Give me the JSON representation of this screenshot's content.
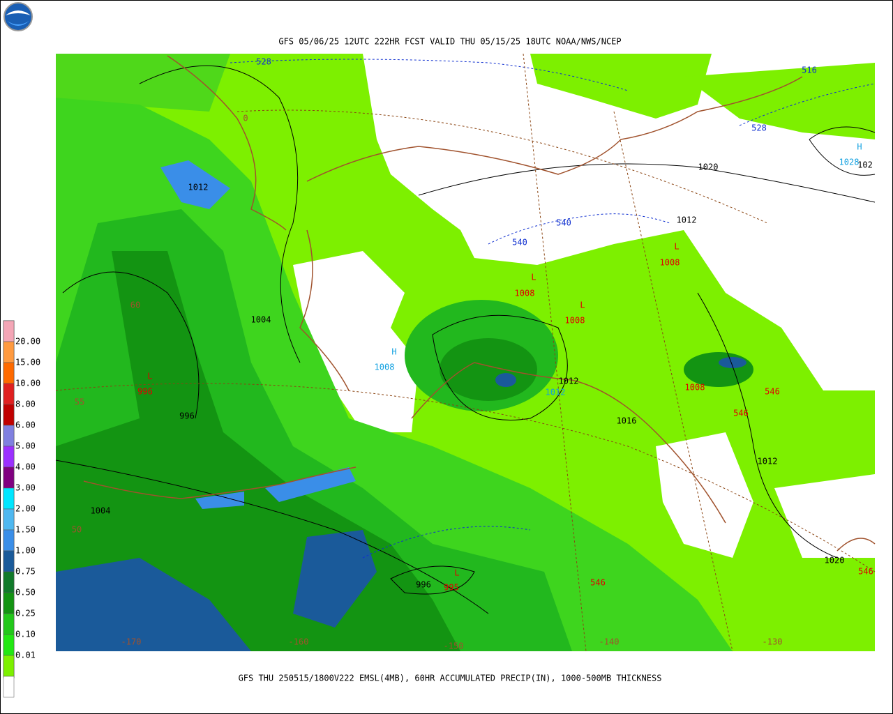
{
  "header": {
    "title": "GFS 05/06/25 12UTC 222HR FCST VALID THU 05/15/25 18UTC NOAA/NWS/NCEP"
  },
  "footer": {
    "caption": "GFS THU 250515/1800V222 EMSL(4MB), 60HR ACCUMULATED PRECIP(IN), 1000-500MB THICKNESS"
  },
  "legend": {
    "labels": [
      "20.00",
      "15.00",
      "10.00",
      "8.00",
      "6.00",
      "5.00",
      "4.00",
      "3.00",
      "2.00",
      "1.50",
      "1.00",
      "0.75",
      "0.50",
      "0.25",
      "0.10",
      "0.01"
    ]
  },
  "map": {
    "labels": [
      "528",
      "516",
      "528",
      "1020",
      "H",
      "1028",
      "102",
      "1012",
      "540",
      "540",
      "1012",
      "L",
      "1008",
      "L",
      "1008",
      "L",
      "1008",
      "1004",
      "60",
      "H",
      "1008",
      "L",
      "996",
      "1012",
      "1012",
      "1008",
      "546",
      "546",
      "996",
      "1016",
      "55",
      "1012",
      "1004",
      "50",
      "L",
      "996",
      "995",
      "546",
      "1020",
      "546",
      "-170",
      "-160",
      "-150",
      "-140",
      "-130",
      "0"
    ]
  }
}
